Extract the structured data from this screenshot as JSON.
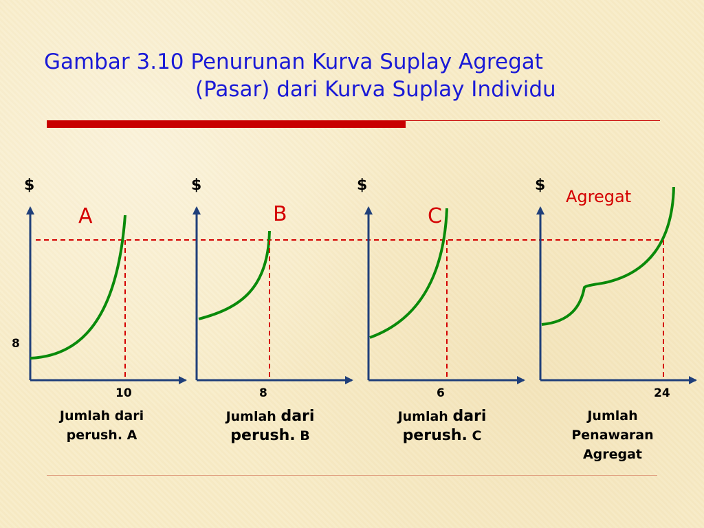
{
  "title": {
    "line1": "Gambar 3.10 Penurunan Kurva Suplay Agregat",
    "line2": "(Pasar) dari Kurva Suplay Individu"
  },
  "panels": [
    {
      "axis_label": "$",
      "curve_label": "A",
      "x_tick": "10",
      "caption_a": "Jumlah dari",
      "caption_b": "perush. A"
    },
    {
      "axis_label": "$",
      "curve_label": "B",
      "x_tick": "8",
      "caption_small": "Jumlah",
      "caption_big": "dari",
      "caption_big2": "perush.",
      "caption_small2": "B"
    },
    {
      "axis_label": "$",
      "curve_label": "C",
      "x_tick": "6",
      "caption_small": "Jumlah",
      "caption_big": "dari",
      "caption_big2": "perush.",
      "caption_small2": "C"
    },
    {
      "axis_label": "$",
      "curve_label": "Agregat",
      "x_tick": "24",
      "caption_1": "Jumlah",
      "caption_2": "Penawaran",
      "caption_3": "Agregat"
    }
  ],
  "y_tick": "8",
  "colors": {
    "title": "#1a1ad6",
    "axis": "#1f3f7a",
    "curve": "#0a8a0a",
    "dashed": "#d40000",
    "rule": "#c80000"
  }
}
